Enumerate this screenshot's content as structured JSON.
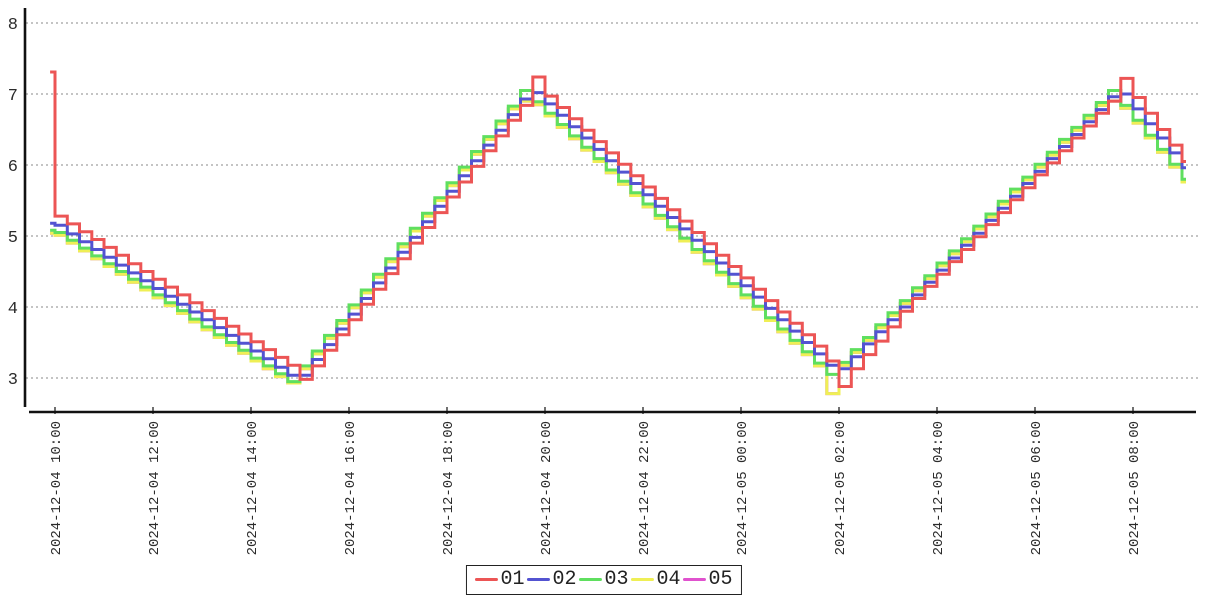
{
  "chart_data": {
    "type": "line",
    "title": "",
    "line_style": "step-after",
    "x_axis": {
      "tick_labels": [
        "2024-12-04 10:00",
        "2024-12-04 12:00",
        "2024-12-04 14:00",
        "2024-12-04 16:00",
        "2024-12-04 18:00",
        "2024-12-04 20:00",
        "2024-12-04 22:00",
        "2024-12-05 00:00",
        "2024-12-05 02:00",
        "2024-12-05 04:00",
        "2024-12-05 06:00",
        "2024-12-05 08:00"
      ],
      "tick_interval_hours": 2,
      "label_rotation_degrees": -90
    },
    "y_axis": {
      "tick_labels": [
        "3",
        "4",
        "5",
        "6",
        "7",
        "8"
      ],
      "min": 2.5,
      "max": 8.3,
      "grid": "horizontal-dashed"
    },
    "sampling": {
      "origin_label": "2024-12-04 10:00",
      "first_offset_hours": -0.1,
      "step_hours": 0.25
    },
    "legend": {
      "position": "bottom-center",
      "entries": [
        "01",
        "02",
        "03",
        "04",
        "05"
      ]
    },
    "draw_order": [
      "05",
      "04",
      "03",
      "02",
      "01"
    ],
    "series": [
      {
        "name": "01",
        "color": "#ec5555",
        "values": [
          7.31,
          5.28,
          5.17,
          5.06,
          4.95,
          4.84,
          4.73,
          4.61,
          4.5,
          4.39,
          4.28,
          4.17,
          4.06,
          3.95,
          3.84,
          3.73,
          3.62,
          3.51,
          3.4,
          3.29,
          3.18,
          2.98,
          3.17,
          3.39,
          3.61,
          3.82,
          4.04,
          4.25,
          4.47,
          4.68,
          4.9,
          5.12,
          5.33,
          5.55,
          5.76,
          5.98,
          6.2,
          6.41,
          6.63,
          6.84,
          7.24,
          6.97,
          6.81,
          6.65,
          6.49,
          6.33,
          6.17,
          6.01,
          5.85,
          5.69,
          5.53,
          5.37,
          5.21,
          5.05,
          4.89,
          4.73,
          4.57,
          4.41,
          4.25,
          4.09,
          3.93,
          3.77,
          3.61,
          3.45,
          3.24,
          2.88,
          3.13,
          3.33,
          3.52,
          3.72,
          3.94,
          4.12,
          4.29,
          4.46,
          4.64,
          4.81,
          4.99,
          5.16,
          5.33,
          5.51,
          5.68,
          5.86,
          6.03,
          6.2,
          6.38,
          6.55,
          6.73,
          6.9,
          7.22,
          6.95,
          6.73,
          6.5,
          6.28,
          6.05
        ]
      },
      {
        "name": "02",
        "color": "#5353d1",
        "values": [
          5.18,
          5.15,
          5.03,
          4.92,
          4.81,
          4.7,
          4.59,
          4.48,
          4.37,
          4.26,
          4.15,
          4.04,
          3.93,
          3.82,
          3.71,
          3.6,
          3.49,
          3.38,
          3.27,
          3.15,
          3.04,
          3.04,
          3.26,
          3.47,
          3.69,
          3.9,
          4.12,
          4.34,
          4.55,
          4.77,
          4.98,
          5.2,
          5.42,
          5.63,
          5.85,
          6.06,
          6.28,
          6.49,
          6.71,
          6.93,
          7.02,
          6.86,
          6.7,
          6.54,
          6.38,
          6.22,
          6.06,
          5.9,
          5.74,
          5.58,
          5.42,
          5.26,
          5.1,
          4.94,
          4.78,
          4.62,
          4.46,
          4.3,
          4.14,
          3.98,
          3.82,
          3.66,
          3.5,
          3.34,
          3.18,
          3.13,
          3.3,
          3.48,
          3.65,
          3.82,
          4.0,
          4.17,
          4.35,
          4.52,
          4.69,
          4.87,
          5.04,
          5.22,
          5.39,
          5.56,
          5.74,
          5.91,
          6.09,
          6.26,
          6.43,
          6.61,
          6.78,
          6.96,
          7.0,
          6.79,
          6.58,
          6.38,
          6.17,
          5.96
        ]
      },
      {
        "name": "03",
        "color": "#5fdf5f",
        "values": [
          5.08,
          5.05,
          4.94,
          4.83,
          4.72,
          4.61,
          4.5,
          4.39,
          4.28,
          4.17,
          4.06,
          3.95,
          3.83,
          3.72,
          3.61,
          3.5,
          3.39,
          3.28,
          3.17,
          3.06,
          2.95,
          3.17,
          3.38,
          3.6,
          3.81,
          4.03,
          4.24,
          4.46,
          4.68,
          4.89,
          5.11,
          5.32,
          5.54,
          5.75,
          5.97,
          6.19,
          6.4,
          6.62,
          6.83,
          7.05,
          6.89,
          6.73,
          6.57,
          6.41,
          6.25,
          6.09,
          5.93,
          5.77,
          5.61,
          5.45,
          5.29,
          5.13,
          4.97,
          4.81,
          4.65,
          4.49,
          4.33,
          4.17,
          4.01,
          3.85,
          3.69,
          3.53,
          3.37,
          3.21,
          3.05,
          3.22,
          3.4,
          3.57,
          3.75,
          3.92,
          4.09,
          4.27,
          4.44,
          4.62,
          4.79,
          4.96,
          5.14,
          5.31,
          5.49,
          5.66,
          5.83,
          6.01,
          6.18,
          6.36,
          6.53,
          6.7,
          6.88,
          7.05,
          6.84,
          6.63,
          6.42,
          6.22,
          6.01,
          5.8
        ]
      },
      {
        "name": "04",
        "color": "#efef55",
        "values": [
          5.04,
          5.01,
          4.9,
          4.79,
          4.68,
          4.57,
          4.46,
          4.35,
          4.24,
          4.13,
          4.02,
          3.91,
          3.79,
          3.68,
          3.57,
          3.46,
          3.35,
          3.24,
          3.13,
          3.02,
          2.93,
          3.13,
          3.34,
          3.56,
          3.77,
          3.99,
          4.2,
          4.42,
          4.64,
          4.85,
          5.07,
          5.28,
          5.5,
          5.71,
          5.93,
          6.15,
          6.36,
          6.58,
          6.79,
          6.9,
          6.85,
          6.69,
          6.53,
          6.37,
          6.21,
          6.05,
          5.89,
          5.73,
          5.57,
          5.41,
          5.25,
          5.09,
          4.93,
          4.77,
          4.61,
          4.45,
          4.29,
          4.13,
          3.97,
          3.81,
          3.65,
          3.49,
          3.33,
          3.17,
          2.78,
          3.18,
          3.36,
          3.53,
          3.71,
          3.88,
          4.05,
          4.23,
          4.4,
          4.58,
          4.75,
          4.92,
          5.1,
          5.27,
          5.45,
          5.62,
          5.79,
          5.97,
          6.14,
          6.32,
          6.49,
          6.66,
          6.84,
          6.9,
          6.8,
          6.59,
          6.38,
          6.18,
          5.97,
          5.76
        ]
      },
      {
        "name": "05",
        "color": "#e052ce",
        "values": [
          5.04,
          5.01,
          4.9,
          4.79,
          4.68,
          4.57,
          4.46,
          4.35,
          4.24,
          4.13,
          4.02,
          3.91,
          3.79,
          3.68,
          3.57,
          3.46,
          3.35,
          3.24,
          3.13,
          3.02,
          2.93,
          3.13,
          3.34,
          3.56,
          3.77,
          3.99,
          4.2,
          4.42,
          4.64,
          4.85,
          5.07,
          5.28,
          5.5,
          5.71,
          5.93,
          6.15,
          6.36,
          6.58,
          6.79,
          6.9,
          6.85,
          6.69,
          6.53,
          6.37,
          6.21,
          6.05,
          5.89,
          5.73,
          5.57,
          5.41,
          5.25,
          5.09,
          4.93,
          4.77,
          4.61,
          4.45,
          4.29,
          4.13,
          3.97,
          3.81,
          3.65,
          3.49,
          3.33,
          3.17,
          2.78,
          3.18,
          3.36,
          3.53,
          3.71,
          3.88,
          4.05,
          4.23,
          4.4,
          4.58,
          4.75,
          4.92,
          5.1,
          5.27,
          5.45,
          5.62,
          5.79,
          5.97,
          6.14,
          6.32,
          6.49,
          6.66,
          6.84,
          6.9,
          6.8,
          6.59,
          6.38,
          6.18,
          5.97,
          5.76
        ]
      }
    ]
  },
  "colors": {
    "background": "#ffffff",
    "grid": "#8a8a8a",
    "axis": "#111111",
    "tick_text": "#2b2b2b",
    "legend_border": "#222222"
  }
}
